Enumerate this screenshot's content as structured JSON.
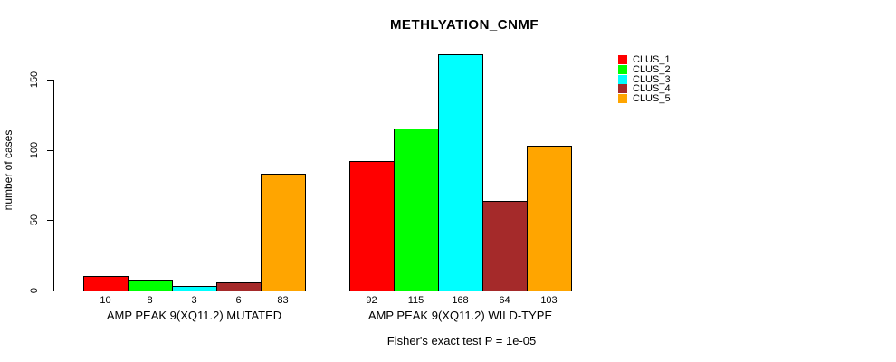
{
  "title": "METHLYATION_CNMF",
  "y_axis": {
    "label": "number of cases"
  },
  "footer": {
    "text": "Fisher's exact test P = 1e-05"
  },
  "legend": {
    "items": [
      {
        "label": "CLUS_1",
        "color": "#FF0000"
      },
      {
        "label": "CLUS_2",
        "color": "#00FF00"
      },
      {
        "label": "CLUS_3",
        "color": "#00FFFF"
      },
      {
        "label": "CLUS_4",
        "color": "#A52A2A"
      },
      {
        "label": "CLUS_5",
        "color": "#FFA500"
      }
    ]
  },
  "chart_data": {
    "type": "bar",
    "title": "METHLYATION_CNMF",
    "xlabel": "",
    "ylabel": "number of cases",
    "ylim": [
      0,
      150
    ],
    "yticks": [
      0,
      50,
      100,
      150
    ],
    "grid": false,
    "legend_position": "top-right",
    "categories": [
      "AMP PEAK 9(XQ11.2) MUTATED",
      "AMP PEAK 9(XQ11.2) WILD-TYPE"
    ],
    "series": [
      {
        "name": "CLUS_1",
        "color": "#FF0000",
        "values": [
          10,
          92
        ]
      },
      {
        "name": "CLUS_2",
        "color": "#00FF00",
        "values": [
          8,
          115
        ]
      },
      {
        "name": "CLUS_3",
        "color": "#00FFFF",
        "values": [
          3,
          168
        ]
      },
      {
        "name": "CLUS_4",
        "color": "#A52A2A",
        "values": [
          6,
          64
        ]
      },
      {
        "name": "CLUS_5",
        "color": "#FFA500",
        "values": [
          83,
          103
        ]
      }
    ],
    "bar_value_labels": [
      [
        10,
        8,
        3,
        6,
        83
      ],
      [
        92,
        115,
        168,
        64,
        103
      ]
    ],
    "annotation": "Fisher's exact test P = 1e-05"
  }
}
